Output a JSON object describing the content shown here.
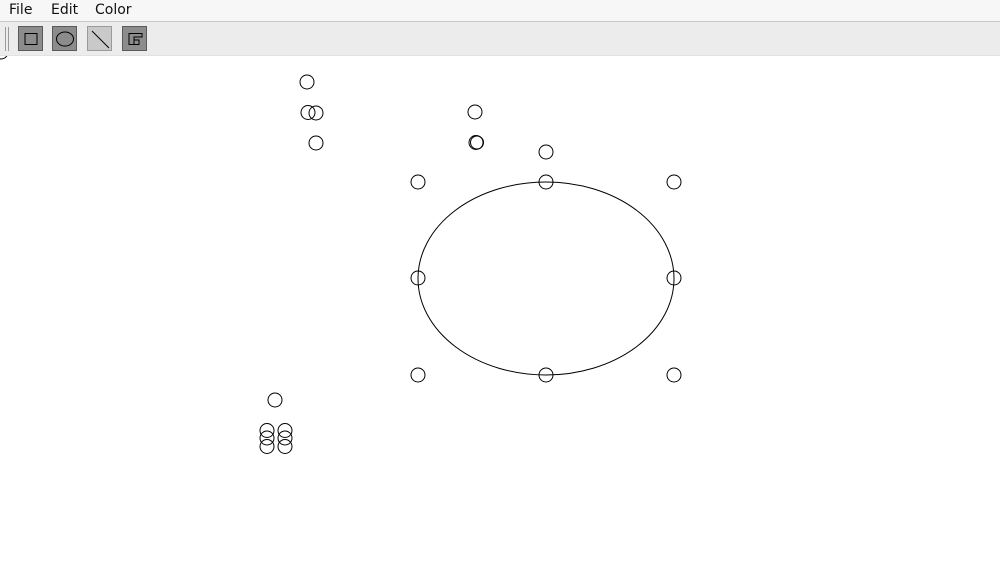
{
  "menubar": {
    "file_label": "File",
    "edit_label": "Edit",
    "color_label": "Color"
  },
  "toolbar": {
    "tools": [
      {
        "name": "rectangle-tool",
        "icon": "rectangle-icon",
        "pressed": false
      },
      {
        "name": "ellipse-tool",
        "icon": "ellipse-icon",
        "pressed": false
      },
      {
        "name": "line-tool",
        "icon": "line-icon",
        "pressed": true
      },
      {
        "name": "polygon-tool",
        "icon": "polygon-icon",
        "pressed": false
      }
    ]
  },
  "canvas": {
    "background": "#ffffff",
    "stroke_color": "#000000",
    "selected_shape": "ellipse"
  }
}
